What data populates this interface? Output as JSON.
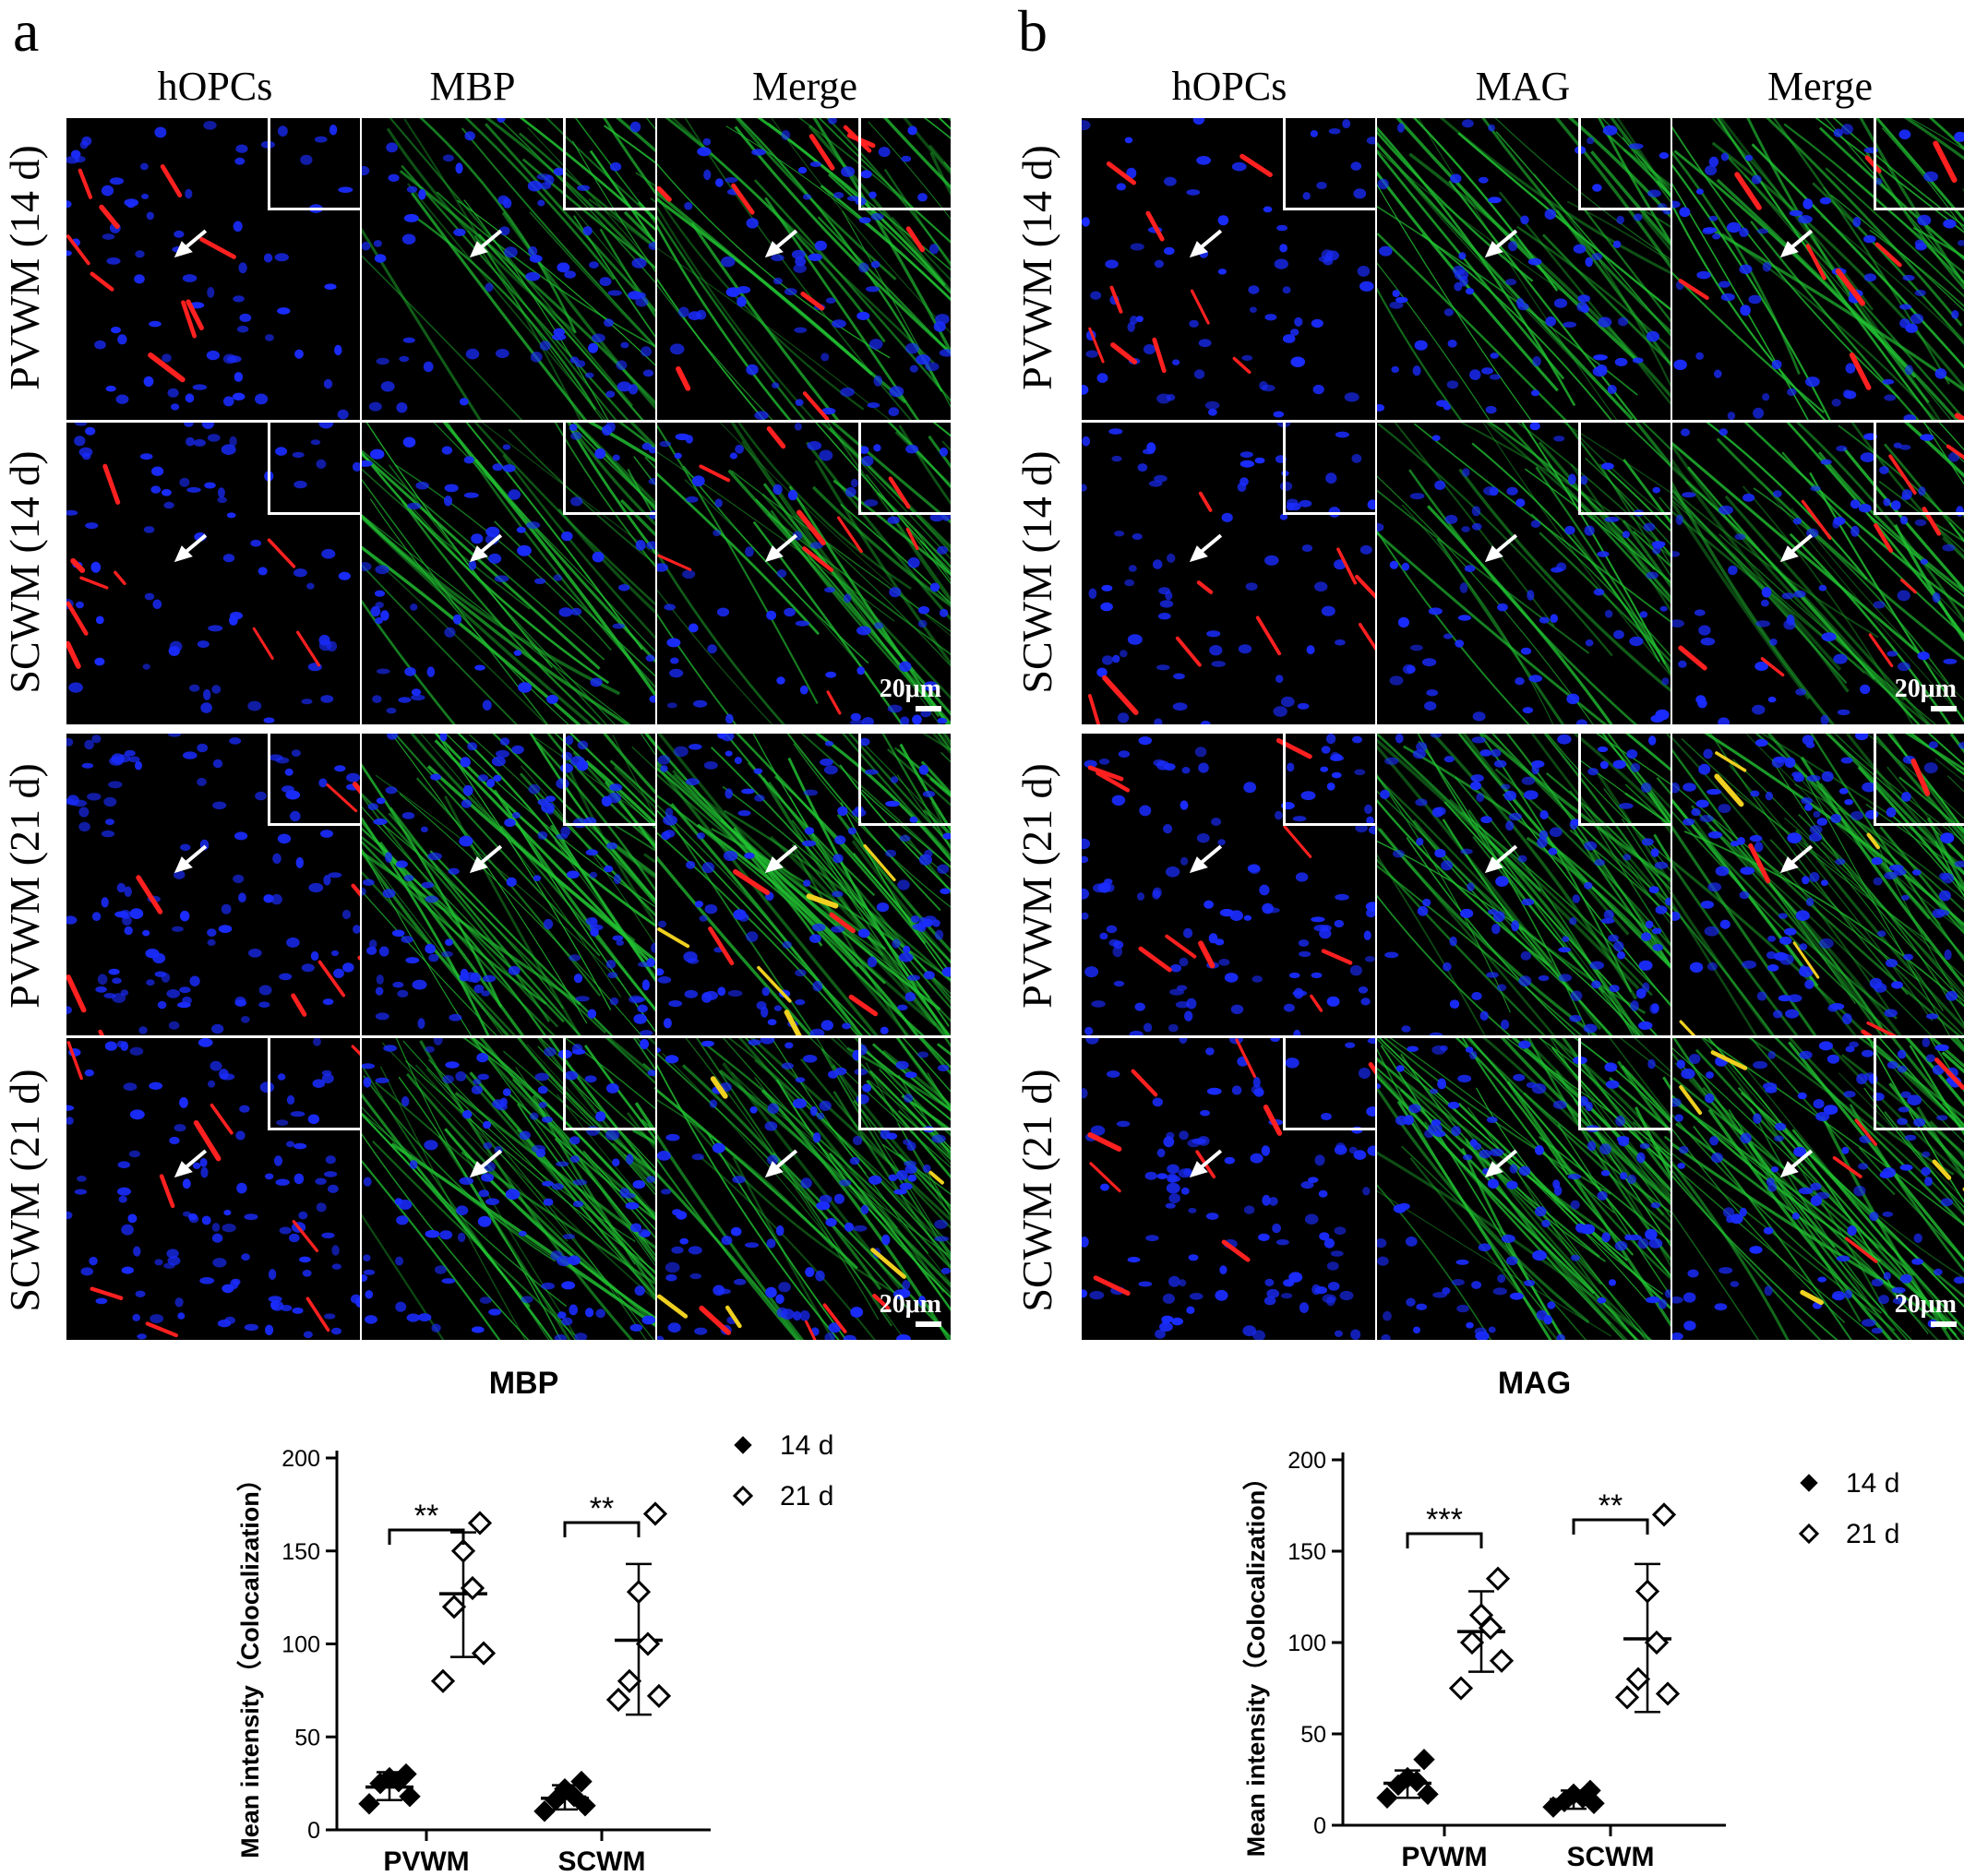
{
  "panels": [
    {
      "letter": "a",
      "columns": [
        "hOPCs",
        "MBP",
        "Merge"
      ],
      "rows": [
        "PVWM (14 d)",
        "SCWM (14 d)",
        "PVWM (21 d)",
        "SCWM (21 d)"
      ],
      "scale_label": "20μm",
      "colors": {
        "nuclei": "#1a2cff",
        "cells": "#ff2020",
        "fibers": "#22c433",
        "coloc": "#f0d020"
      }
    },
    {
      "letter": "b",
      "columns": [
        "hOPCs",
        "MAG",
        "Merge"
      ],
      "rows": [
        "PVWM (14 d)",
        "SCWM (14 d)",
        "PVWM (21 d)",
        "SCWM (21 d)"
      ],
      "scale_label": "20μm",
      "colors": {
        "nuclei": "#1a2cff",
        "cells": "#ff2020",
        "fibers": "#22c433",
        "coloc": "#f0d020"
      }
    }
  ],
  "chart_data": [
    {
      "type": "scatter",
      "title": "MBP",
      "ylabel": "Mean intensity（Colocalization）",
      "categories": [
        "PVWM",
        "SCWM"
      ],
      "ylim": [
        0,
        200
      ],
      "yticks": [
        0,
        50,
        100,
        150,
        200
      ],
      "legend": [
        "14 d",
        "21 d"
      ],
      "legend_position": "top-right",
      "series": [
        {
          "name": "14 d",
          "marker": "filled-diamond",
          "groups": [
            {
              "category": "PVWM",
              "values": [
                14,
                18,
                25,
                26,
                28,
                30
              ],
              "mean": 23,
              "sd": [
                16,
                31
              ]
            },
            {
              "category": "SCWM",
              "values": [
                10,
                13,
                16,
                18,
                22,
                26
              ],
              "mean": 17,
              "sd": [
                11,
                24
              ]
            }
          ]
        },
        {
          "name": "21 d",
          "marker": "open-diamond",
          "groups": [
            {
              "category": "PVWM",
              "values": [
                80,
                95,
                120,
                130,
                150,
                165
              ],
              "mean": 127,
              "sd": [
                93,
                160
              ]
            },
            {
              "category": "SCWM",
              "values": [
                70,
                72,
                80,
                100,
                128,
                170
              ],
              "mean": 102,
              "sd": [
                62,
                143
              ]
            }
          ]
        }
      ],
      "significance": [
        {
          "category": "PVWM",
          "label": "**"
        },
        {
          "category": "SCWM",
          "label": "**"
        }
      ]
    },
    {
      "type": "scatter",
      "title": "MAG",
      "ylabel": "Mean intensity（Colocalization）",
      "categories": [
        "PVWM",
        "SCWM"
      ],
      "ylim": [
        0,
        200
      ],
      "yticks": [
        0,
        50,
        100,
        150,
        200
      ],
      "legend": [
        "14 d",
        "21 d"
      ],
      "legend_position": "top-right",
      "series": [
        {
          "name": "14 d",
          "marker": "filled-diamond",
          "groups": [
            {
              "category": "PVWM",
              "values": [
                15,
                17,
                22,
                24,
                26,
                36
              ],
              "mean": 23,
              "sd": [
                15,
                30
              ]
            },
            {
              "category": "SCWM",
              "values": [
                10,
                12,
                13,
                15,
                17,
                19
              ],
              "mean": 14,
              "sd": [
                9,
                19
              ]
            }
          ]
        },
        {
          "name": "21 d",
          "marker": "open-diamond",
          "groups": [
            {
              "category": "PVWM",
              "values": [
                75,
                90,
                100,
                108,
                115,
                135
              ],
              "mean": 106,
              "sd": [
                84,
                128
              ]
            },
            {
              "category": "SCWM",
              "values": [
                70,
                72,
                80,
                100,
                128,
                170
              ],
              "mean": 102,
              "sd": [
                62,
                143
              ]
            }
          ]
        }
      ],
      "significance": [
        {
          "category": "PVWM",
          "label": "***"
        },
        {
          "category": "SCWM",
          "label": "**"
        }
      ]
    }
  ]
}
